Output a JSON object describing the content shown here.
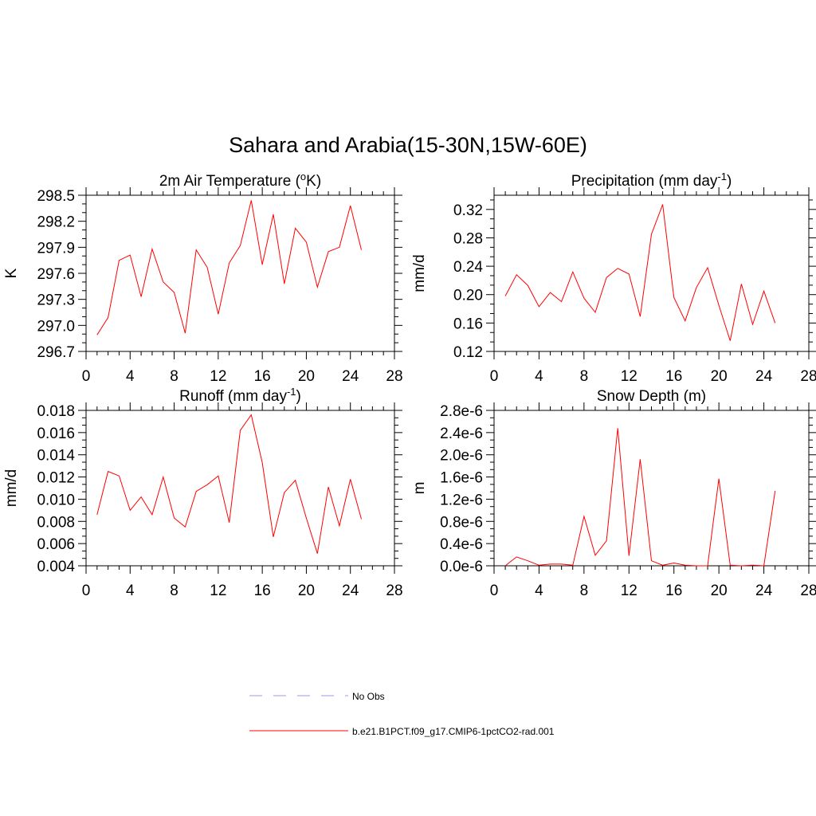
{
  "figure": {
    "title": "Sahara and Arabia(15-30N,15W-60E)",
    "line_color": "#ff0000",
    "obs_color": "#9999ee"
  },
  "legend": {
    "entries": [
      {
        "label": "No Obs",
        "style": "dashed",
        "color": "#9999ee"
      },
      {
        "label": "b.e21.B1PCT.f09_g17.CMIP6-1pctCO2-rad.001",
        "style": "solid",
        "color": "#ff0000"
      }
    ]
  },
  "chart_data": [
    {
      "type": "line",
      "title": "2m Air Temperature (",
      "title_sup": "o",
      "title_after": "K)",
      "ylabel": "K",
      "xlim": [
        0,
        28
      ],
      "xticks": [
        0,
        4,
        8,
        12,
        16,
        20,
        24,
        28
      ],
      "ylim": [
        296.7,
        298.5
      ],
      "yticks": [
        "296.7",
        "297.0",
        "297.3",
        "297.6",
        "297.9",
        "298.2",
        "298.5"
      ],
      "series": [
        {
          "x": [
            1,
            2,
            3,
            4,
            5,
            6,
            7,
            8,
            9,
            10,
            11,
            12,
            13,
            14,
            15,
            16,
            17,
            18,
            19,
            20,
            21,
            22,
            23,
            24,
            25
          ],
          "values": [
            296.89,
            297.09,
            297.75,
            297.81,
            297.33,
            297.88,
            297.5,
            297.38,
            296.91,
            297.87,
            297.67,
            297.13,
            297.72,
            297.92,
            298.44,
            297.7,
            298.28,
            297.48,
            298.12,
            297.96,
            297.44,
            297.85,
            297.9,
            298.38,
            297.87
          ]
        }
      ]
    },
    {
      "type": "line",
      "title": "Precipitation (mm day",
      "title_sup": "-1",
      "title_after": ")",
      "ylabel": "mm/d",
      "xlim": [
        0,
        28
      ],
      "xticks": [
        0,
        4,
        8,
        12,
        16,
        20,
        24,
        28
      ],
      "ylim": [
        0.12,
        0.34
      ],
      "yticks": [
        "0.12",
        "0.16",
        "0.20",
        "0.24",
        "0.28",
        "0.32"
      ],
      "series": [
        {
          "x": [
            1,
            2,
            3,
            4,
            5,
            6,
            7,
            8,
            9,
            10,
            11,
            12,
            13,
            14,
            15,
            16,
            17,
            18,
            19,
            20,
            21,
            22,
            23,
            24,
            25
          ],
          "values": [
            0.198,
            0.228,
            0.213,
            0.183,
            0.203,
            0.19,
            0.232,
            0.195,
            0.175,
            0.224,
            0.237,
            0.229,
            0.169,
            0.285,
            0.327,
            0.196,
            0.163,
            0.21,
            0.238,
            0.185,
            0.135,
            0.215,
            0.158,
            0.205,
            0.16
          ]
        }
      ]
    },
    {
      "type": "line",
      "title": "Runoff (mm day",
      "title_sup": "-1",
      "title_after": ")",
      "ylabel": "mm/d",
      "xlim": [
        0,
        28
      ],
      "xticks": [
        0,
        4,
        8,
        12,
        16,
        20,
        24,
        28
      ],
      "ylim": [
        0.004,
        0.018
      ],
      "yticks": [
        "0.004",
        "0.006",
        "0.008",
        "0.010",
        "0.012",
        "0.014",
        "0.016",
        "0.018"
      ],
      "series": [
        {
          "x": [
            1,
            2,
            3,
            4,
            5,
            6,
            7,
            8,
            9,
            10,
            11,
            12,
            13,
            14,
            15,
            16,
            17,
            18,
            19,
            20,
            21,
            22,
            23,
            24,
            25
          ],
          "values": [
            0.0086,
            0.0125,
            0.0121,
            0.009,
            0.0102,
            0.0086,
            0.012,
            0.0083,
            0.0075,
            0.0107,
            0.0113,
            0.0121,
            0.0079,
            0.0162,
            0.0176,
            0.0133,
            0.0066,
            0.0106,
            0.0117,
            0.0083,
            0.0051,
            0.0111,
            0.0076,
            0.0118,
            0.0082
          ]
        }
      ]
    },
    {
      "type": "line",
      "title": "Snow Depth (m)",
      "title_sup": "",
      "title_after": "",
      "ylabel": "m",
      "xlim": [
        0,
        28
      ],
      "xticks": [
        0,
        4,
        8,
        12,
        16,
        20,
        24,
        28
      ],
      "ylim": [
        0,
        2.8e-06
      ],
      "yticks": [
        "0.0e-6",
        "0.4e-6",
        "0.8e-6",
        "1.2e-6",
        "1.6e-6",
        "2.0e-6",
        "2.4e-6",
        "2.8e-6"
      ],
      "series": [
        {
          "x": [
            1,
            2,
            3,
            4,
            5,
            6,
            7,
            8,
            9,
            10,
            11,
            12,
            13,
            14,
            15,
            16,
            17,
            18,
            19,
            20,
            21,
            22,
            23,
            24,
            25
          ],
          "values": [
            0.0,
            1.6e-07,
            9e-08,
            1e-08,
            3e-08,
            3e-08,
            1e-08,
            8.9e-07,
            1.9e-07,
            4.5e-07,
            2.48e-06,
            1.8e-07,
            1.92e-06,
            9e-08,
            1e-08,
            5e-08,
            1e-08,
            0.0,
            0.0,
            1.57e-06,
            1e-08,
            0.0,
            1e-08,
            0.0,
            1.35e-06
          ]
        }
      ]
    }
  ]
}
